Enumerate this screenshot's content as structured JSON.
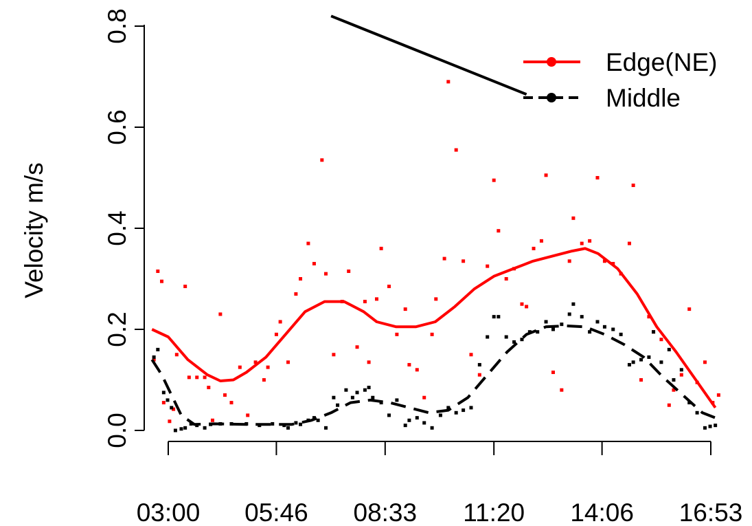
{
  "chart_data": {
    "type": "scatter",
    "title": "",
    "xlabel": "",
    "ylabel": "Velocity m/s",
    "xlim": [
      "02:35",
      "17:10"
    ],
    "ylim": [
      0,
      0.8
    ],
    "x_ticks": [
      "03:00",
      "05:46",
      "08:33",
      "11:20",
      "14:06",
      "16:53"
    ],
    "y_ticks": [
      "0.0",
      "0.2",
      "0.4",
      "0.6",
      "0.8"
    ],
    "grid": false,
    "legend": {
      "position": "top-right",
      "entries": [
        {
          "label": "Edge(NE)",
          "color": "#ff0000",
          "style": "solid"
        },
        {
          "label": "Middle",
          "color": "#000000",
          "style": "dashed"
        }
      ]
    },
    "series": [
      {
        "name": "Edge(NE)",
        "color": "#ff0000",
        "points": [
          [
            "02:38",
            0.14
          ],
          [
            "02:44",
            0.315
          ],
          [
            "02:50",
            0.295
          ],
          [
            "02:53",
            0.055
          ],
          [
            "03:02",
            0.018
          ],
          [
            "03:08",
            0.042
          ],
          [
            "03:13",
            0.15
          ],
          [
            "03:26",
            0.285
          ],
          [
            "03:32",
            0.105
          ],
          [
            "03:44",
            0.105
          ],
          [
            "03:56",
            0.105
          ],
          [
            "04:02",
            0.085
          ],
          [
            "04:08",
            0.02
          ],
          [
            "04:20",
            0.23
          ],
          [
            "04:27",
            0.07
          ],
          [
            "04:37",
            0.055
          ],
          [
            "04:50",
            0.125
          ],
          [
            "05:02",
            0.03
          ],
          [
            "05:14",
            0.135
          ],
          [
            "05:27",
            0.1
          ],
          [
            "05:33",
            0.125
          ],
          [
            "05:46",
            0.19
          ],
          [
            "05:52",
            0.215
          ],
          [
            "06:04",
            0.135
          ],
          [
            "06:16",
            0.27
          ],
          [
            "06:23",
            0.3
          ],
          [
            "06:35",
            0.37
          ],
          [
            "06:44",
            0.33
          ],
          [
            "06:56",
            0.535
          ],
          [
            "07:02",
            0.31
          ],
          [
            "07:14",
            0.15
          ],
          [
            "07:27",
            0.255
          ],
          [
            "07:37",
            0.315
          ],
          [
            "07:50",
            0.165
          ],
          [
            "08:02",
            0.255
          ],
          [
            "08:08",
            0.135
          ],
          [
            "08:20",
            0.26
          ],
          [
            "08:27",
            0.36
          ],
          [
            "08:39",
            0.285
          ],
          [
            "08:51",
            0.19
          ],
          [
            "09:04",
            0.24
          ],
          [
            "09:10",
            0.13
          ],
          [
            "09:22",
            0.12
          ],
          [
            "09:33",
            0.065
          ],
          [
            "09:45",
            0.19
          ],
          [
            "09:51",
            0.26
          ],
          [
            "10:04",
            0.34
          ],
          [
            "10:10",
            0.69
          ],
          [
            "10:22",
            0.555
          ],
          [
            "10:33",
            0.335
          ],
          [
            "10:45",
            0.15
          ],
          [
            "10:58",
            0.11
          ],
          [
            "11:10",
            0.325
          ],
          [
            "11:20",
            0.495
          ],
          [
            "11:27",
            0.395
          ],
          [
            "11:39",
            0.3
          ],
          [
            "11:51",
            0.32
          ],
          [
            "12:03",
            0.25
          ],
          [
            "12:10",
            0.245
          ],
          [
            "12:21",
            0.36
          ],
          [
            "12:33",
            0.375
          ],
          [
            "12:40",
            0.505
          ],
          [
            "12:51",
            0.115
          ],
          [
            "13:04",
            0.08
          ],
          [
            "13:16",
            0.335
          ],
          [
            "13:22",
            0.42
          ],
          [
            "13:35",
            0.37
          ],
          [
            "13:47",
            0.375
          ],
          [
            "13:59",
            0.5
          ],
          [
            "14:10",
            0.335
          ],
          [
            "14:23",
            0.33
          ],
          [
            "14:35",
            0.31
          ],
          [
            "14:48",
            0.37
          ],
          [
            "14:54",
            0.485
          ],
          [
            "15:06",
            0.1
          ],
          [
            "15:18",
            0.225
          ],
          [
            "15:25",
            0.195
          ],
          [
            "15:37",
            0.18
          ],
          [
            "15:49",
            0.05
          ],
          [
            "15:56",
            0.08
          ],
          [
            "16:08",
            0.11
          ],
          [
            "16:20",
            0.24
          ],
          [
            "16:32",
            0.095
          ],
          [
            "16:44",
            0.135
          ],
          [
            "16:56",
            0.055
          ],
          [
            "17:05",
            0.07
          ]
        ],
        "smooth": [
          [
            "02:35",
            0.2
          ],
          [
            "03:00",
            0.185
          ],
          [
            "03:30",
            0.14
          ],
          [
            "04:00",
            0.11
          ],
          [
            "04:20",
            0.098
          ],
          [
            "04:40",
            0.1
          ],
          [
            "05:00",
            0.115
          ],
          [
            "05:30",
            0.145
          ],
          [
            "06:00",
            0.19
          ],
          [
            "06:30",
            0.235
          ],
          [
            "07:00",
            0.255
          ],
          [
            "07:30",
            0.255
          ],
          [
            "08:00",
            0.235
          ],
          [
            "08:20",
            0.215
          ],
          [
            "08:50",
            0.205
          ],
          [
            "09:20",
            0.205
          ],
          [
            "09:50",
            0.215
          ],
          [
            "10:20",
            0.245
          ],
          [
            "10:50",
            0.28
          ],
          [
            "11:20",
            0.305
          ],
          [
            "11:50",
            0.32
          ],
          [
            "12:20",
            0.335
          ],
          [
            "12:50",
            0.345
          ],
          [
            "13:20",
            0.355
          ],
          [
            "13:40",
            0.36
          ],
          [
            "14:00",
            0.35
          ],
          [
            "14:30",
            0.32
          ],
          [
            "15:00",
            0.27
          ],
          [
            "15:30",
            0.205
          ],
          [
            "16:00",
            0.155
          ],
          [
            "16:30",
            0.1
          ],
          [
            "17:00",
            0.045
          ]
        ]
      },
      {
        "name": "Middle",
        "color": "#000000",
        "points": [
          [
            "02:38",
            0.145
          ],
          [
            "02:44",
            0.16
          ],
          [
            "02:53",
            0.075
          ],
          [
            "02:59",
            0.06
          ],
          [
            "03:05",
            0.045
          ],
          [
            "03:11",
            0.0
          ],
          [
            "03:20",
            0.003
          ],
          [
            "03:26",
            0.005
          ],
          [
            "03:35",
            0.013
          ],
          [
            "03:44",
            0.01
          ],
          [
            "03:56",
            0.005
          ],
          [
            "04:05",
            0.012
          ],
          [
            "04:20",
            0.013
          ],
          [
            "04:37",
            0.013
          ],
          [
            "05:00",
            0.013
          ],
          [
            "05:20",
            0.01
          ],
          [
            "05:40",
            0.013
          ],
          [
            "05:58",
            0.01
          ],
          [
            "06:04",
            0.005
          ],
          [
            "06:16",
            0.015
          ],
          [
            "06:23",
            0.012
          ],
          [
            "06:35",
            0.02
          ],
          [
            "06:44",
            0.025
          ],
          [
            "06:50",
            0.02
          ],
          [
            "07:02",
            0.005
          ],
          [
            "07:14",
            0.065
          ],
          [
            "07:20",
            0.05
          ],
          [
            "07:33",
            0.08
          ],
          [
            "07:43",
            0.065
          ],
          [
            "07:50",
            0.075
          ],
          [
            "08:02",
            0.08
          ],
          [
            "08:08",
            0.085
          ],
          [
            "08:14",
            0.065
          ],
          [
            "08:27",
            0.055
          ],
          [
            "08:39",
            0.03
          ],
          [
            "08:51",
            0.06
          ],
          [
            "09:04",
            0.01
          ],
          [
            "09:10",
            0.02
          ],
          [
            "09:22",
            0.025
          ],
          [
            "09:33",
            0.015
          ],
          [
            "09:45",
            0.005
          ],
          [
            "09:58",
            0.03
          ],
          [
            "10:10",
            0.045
          ],
          [
            "10:22",
            0.035
          ],
          [
            "10:33",
            0.04
          ],
          [
            "10:45",
            0.045
          ],
          [
            "10:58",
            0.13
          ],
          [
            "11:10",
            0.185
          ],
          [
            "11:20",
            0.225
          ],
          [
            "11:27",
            0.225
          ],
          [
            "11:39",
            0.185
          ],
          [
            "11:51",
            0.175
          ],
          [
            "12:03",
            0.18
          ],
          [
            "12:15",
            0.195
          ],
          [
            "12:27",
            0.195
          ],
          [
            "12:40",
            0.215
          ],
          [
            "12:51",
            0.2
          ],
          [
            "13:04",
            0.21
          ],
          [
            "13:16",
            0.23
          ],
          [
            "13:22",
            0.25
          ],
          [
            "13:35",
            0.225
          ],
          [
            "13:47",
            0.195
          ],
          [
            "13:59",
            0.215
          ],
          [
            "14:10",
            0.205
          ],
          [
            "14:23",
            0.2
          ],
          [
            "14:35",
            0.19
          ],
          [
            "14:48",
            0.13
          ],
          [
            "14:54",
            0.135
          ],
          [
            "15:06",
            0.14
          ],
          [
            "15:18",
            0.145
          ],
          [
            "15:25",
            0.195
          ],
          [
            "15:37",
            0.135
          ],
          [
            "15:49",
            0.16
          ],
          [
            "15:56",
            0.1
          ],
          [
            "16:08",
            0.12
          ],
          [
            "16:20",
            0.055
          ],
          [
            "16:32",
            0.035
          ],
          [
            "16:44",
            0.005
          ],
          [
            "16:52",
            0.008
          ],
          [
            "17:00",
            0.01
          ]
        ],
        "smooth": [
          [
            "02:35",
            0.14
          ],
          [
            "02:50",
            0.11
          ],
          [
            "03:05",
            0.07
          ],
          [
            "03:20",
            0.03
          ],
          [
            "03:40",
            0.012
          ],
          [
            "04:10",
            0.013
          ],
          [
            "05:00",
            0.012
          ],
          [
            "05:40",
            0.012
          ],
          [
            "06:10",
            0.012
          ],
          [
            "06:40",
            0.02
          ],
          [
            "07:10",
            0.035
          ],
          [
            "07:40",
            0.055
          ],
          [
            "08:10",
            0.06
          ],
          [
            "08:40",
            0.055
          ],
          [
            "09:10",
            0.045
          ],
          [
            "09:40",
            0.035
          ],
          [
            "10:10",
            0.04
          ],
          [
            "10:40",
            0.065
          ],
          [
            "11:10",
            0.11
          ],
          [
            "11:40",
            0.155
          ],
          [
            "12:10",
            0.19
          ],
          [
            "12:40",
            0.205
          ],
          [
            "13:10",
            0.207
          ],
          [
            "13:40",
            0.205
          ],
          [
            "14:10",
            0.19
          ],
          [
            "14:40",
            0.17
          ],
          [
            "15:10",
            0.145
          ],
          [
            "15:40",
            0.105
          ],
          [
            "16:10",
            0.07
          ],
          [
            "16:40",
            0.035
          ],
          [
            "17:00",
            0.025
          ]
        ]
      }
    ],
    "annotations": [
      {
        "type": "line",
        "color": "#000000",
        "from": [
          "07:10",
          0.82
        ],
        "to": [
          "12:10",
          0.665
        ]
      }
    ]
  }
}
